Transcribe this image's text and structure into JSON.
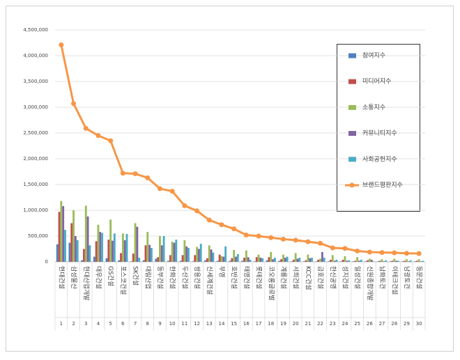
{
  "chart_data": {
    "type": "bar",
    "categories": [
      "현대건설",
      "삼성물산",
      "현대산업개발",
      "대우건설",
      "GS건설",
      "포스코건설",
      "SK건설",
      "대림산업",
      "동부건설",
      "한화건설",
      "두산건설",
      "쌍용건설",
      "신세계건설",
      "부영",
      "호반건설",
      "태영건설",
      "롯데건설",
      "코오롱글로벌",
      "계룡건설",
      "서희건설",
      "KCC건설",
      "금호건설",
      "한신공영",
      "성지건설",
      "일성건설",
      "신원종합개발",
      "남화토건",
      "이테크건설",
      "남광토건",
      "동문건설"
    ],
    "ranks": [
      1,
      2,
      3,
      4,
      5,
      6,
      7,
      8,
      9,
      10,
      11,
      12,
      13,
      14,
      15,
      16,
      17,
      18,
      19,
      20,
      21,
      22,
      23,
      24,
      25,
      26,
      27,
      28,
      29,
      30
    ],
    "series": [
      {
        "name": "참여지수",
        "type": "bar",
        "color": "#4f81bd",
        "values": [
          340000,
          370000,
          30000,
          100000,
          70000,
          30000,
          10000,
          30000,
          60000,
          20000,
          20000,
          10000,
          30000,
          20000,
          20000,
          20000,
          10000,
          30000,
          20000,
          10000,
          10000,
          10000,
          10000,
          10000,
          10000,
          10000,
          10000,
          10000,
          10000,
          10000
        ]
      },
      {
        "name": "미디어지수",
        "type": "bar",
        "color": "#c0504d",
        "values": [
          970000,
          750000,
          250000,
          400000,
          430000,
          170000,
          160000,
          320000,
          90000,
          130000,
          130000,
          130000,
          70000,
          140000,
          70000,
          80000,
          90000,
          90000,
          50000,
          40000,
          30000,
          40000,
          40000,
          40000,
          20000,
          30000,
          20000,
          20000,
          20000,
          20000
        ]
      },
      {
        "name": "소통지수",
        "type": "bar",
        "color": "#9bbb59",
        "values": [
          1180000,
          1000000,
          1090000,
          720000,
          820000,
          550000,
          750000,
          580000,
          500000,
          390000,
          420000,
          290000,
          320000,
          110000,
          230000,
          220000,
          140000,
          190000,
          140000,
          170000,
          140000,
          60000,
          130000,
          110000,
          90000,
          60000,
          50000,
          60000,
          50000,
          50000
        ]
      },
      {
        "name": "커뮤니티지수",
        "type": "bar",
        "color": "#8064a2",
        "values": [
          1080000,
          500000,
          880000,
          580000,
          410000,
          420000,
          680000,
          330000,
          320000,
          370000,
          300000,
          250000,
          240000,
          100000,
          100000,
          90000,
          80000,
          50000,
          80000,
          60000,
          70000,
          190000,
          20000,
          20000,
          20000,
          40000,
          10000,
          20000,
          10000,
          10000
        ]
      },
      {
        "name": "사회공헌지수",
        "type": "bar",
        "color": "#4bacc6",
        "values": [
          620000,
          420000,
          320000,
          560000,
          550000,
          540000,
          80000,
          270000,
          500000,
          430000,
          270000,
          350000,
          180000,
          300000,
          150000,
          40000,
          70000,
          80000,
          100000,
          80000,
          80000,
          80000,
          40000,
          30000,
          40000,
          10000,
          30000,
          20000,
          30000,
          20000
        ]
      },
      {
        "name": "브랜드평판지수",
        "type": "line",
        "color": "#f79646",
        "values": [
          4210000,
          3070000,
          2590000,
          2450000,
          2350000,
          1720000,
          1710000,
          1630000,
          1420000,
          1370000,
          1090000,
          990000,
          810000,
          720000,
          640000,
          520000,
          500000,
          470000,
          440000,
          420000,
          390000,
          360000,
          270000,
          260000,
          210000,
          190000,
          180000,
          175000,
          165000,
          160000
        ]
      }
    ],
    "ylim": [
      0,
      4500000
    ],
    "yticks": [
      0,
      {
        "value": 500000,
        "label": "500,000"
      },
      {
        "value": 1000000,
        "label": "1,000,000"
      },
      {
        "value": 1500000,
        "label": "1,500,000"
      },
      {
        "value": 2000000,
        "label": "2,000,000"
      },
      {
        "value": 2500000,
        "label": "2,500,000"
      },
      {
        "value": 3000000,
        "label": "3,000,000"
      },
      {
        "value": 3500000,
        "label": "3,500,000"
      },
      {
        "value": 4000000,
        "label": "4,000,000"
      },
      {
        "value": 4500000,
        "label": "4,500,000"
      }
    ],
    "grid": true
  }
}
